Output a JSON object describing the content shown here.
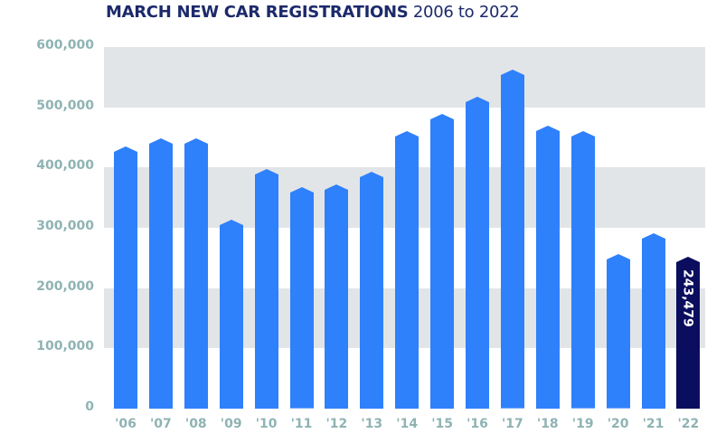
{
  "title": {
    "bold": "MARCH NEW CAR REGISTRATIONS",
    "regular": "2006 to 2022"
  },
  "colors": {
    "bar": "#2f80fb",
    "highlight": "#0b0e5e",
    "band": "#e2e5e7",
    "title": "#1c2a6b",
    "axis_text": "#8fb3b3"
  },
  "chart_data": {
    "type": "bar",
    "title": "MARCH NEW CAR REGISTRATIONS 2006 to 2022",
    "xlabel": "",
    "ylabel": "",
    "ylim": [
      0,
      600000
    ],
    "yticks": [
      "0",
      "100,000",
      "200,000",
      "300,000",
      "400,000",
      "500,000",
      "600,000"
    ],
    "categories": [
      "'06",
      "'07",
      "'08",
      "'09",
      "'10",
      "'11",
      "'12",
      "'13",
      "'14",
      "'15",
      "'16",
      "'17",
      "'18",
      "'19",
      "'20",
      "'21",
      "'22"
    ],
    "values": [
      426000,
      440000,
      440000,
      305000,
      389000,
      358000,
      363000,
      384000,
      452000,
      480000,
      509000,
      553000,
      461000,
      451000,
      247000,
      282000,
      243479
    ],
    "highlight_index": 16,
    "annotations": [
      {
        "category": "'22",
        "text": "243,479"
      }
    ],
    "grid": "alternating horizontal bands",
    "legend": "none"
  }
}
